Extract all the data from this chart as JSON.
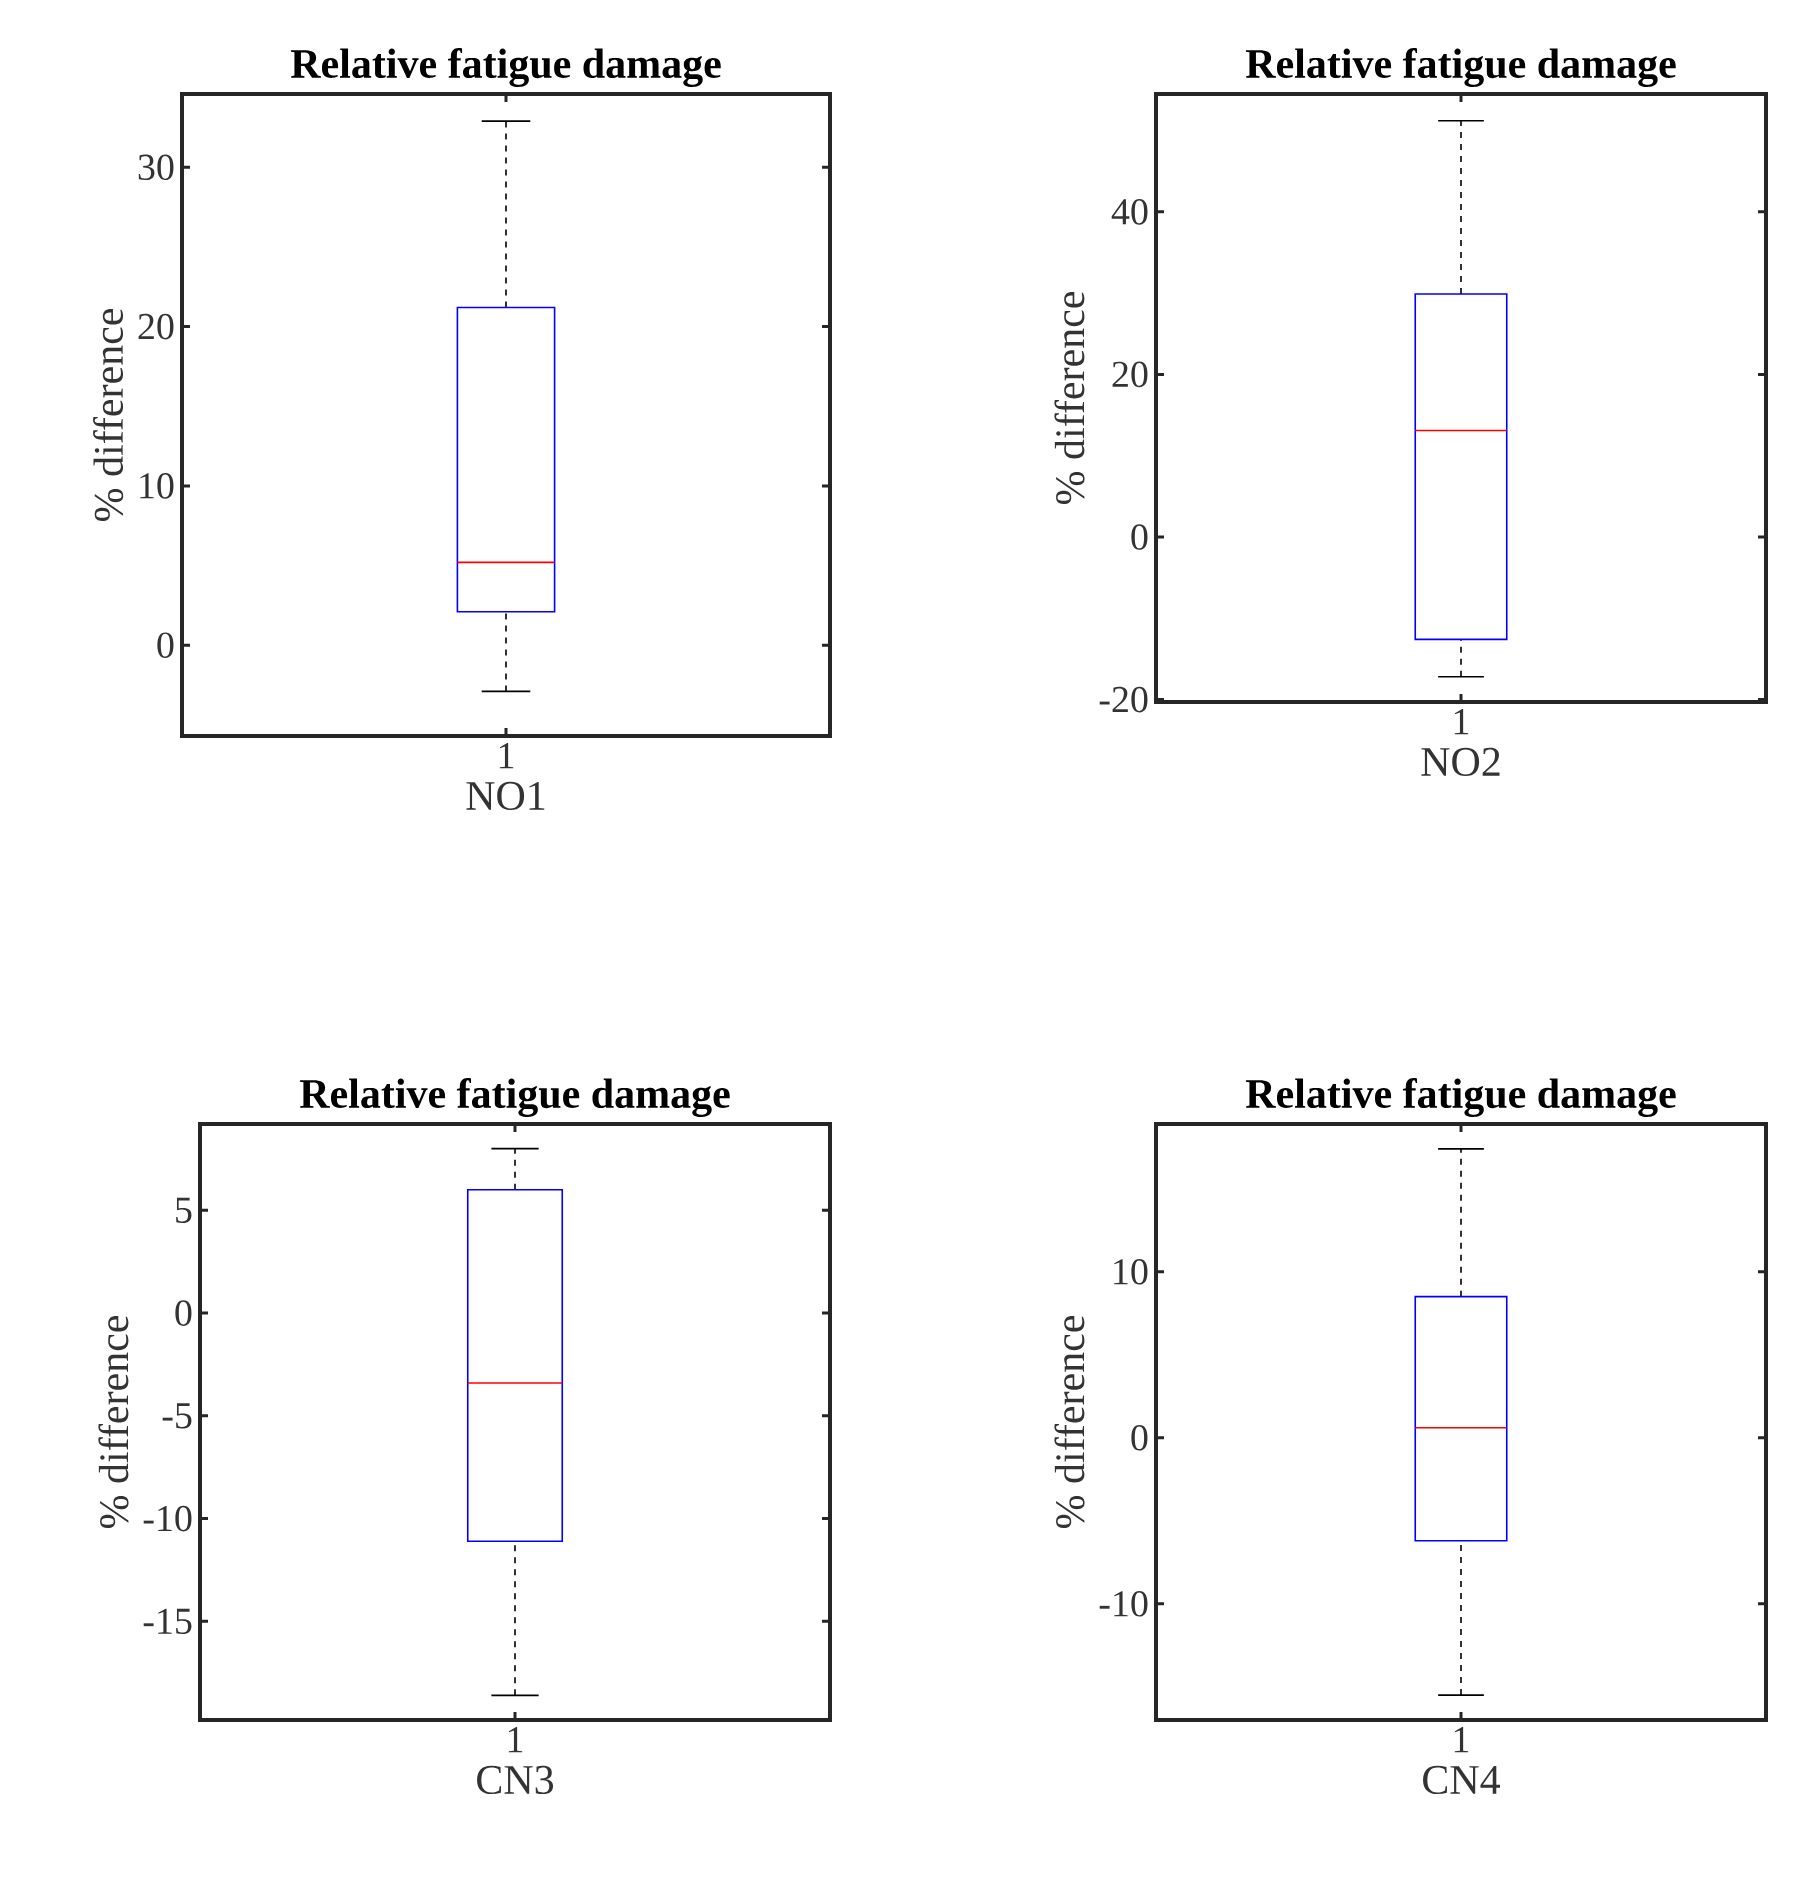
{
  "chart_data": [
    {
      "type": "box",
      "title": "Relative fatigue damage",
      "xlabel": "NO1",
      "ylabel": "% difference",
      "categories": [
        "1"
      ],
      "boxes": [
        {
          "low": -2.9,
          "q1": 2.1,
          "median": 5.2,
          "q3": 21.2,
          "high": 32.9
        }
      ],
      "ylim": [
        -5.7,
        34.6
      ],
      "yticks": [
        0,
        10,
        20,
        30
      ]
    },
    {
      "type": "box",
      "title": "Relative fatigue damage",
      "xlabel": "NO2",
      "ylabel": "% difference",
      "categories": [
        "1"
      ],
      "boxes": [
        {
          "low": -17.2,
          "q1": -12.6,
          "median": 13.1,
          "q3": 29.9,
          "high": 51.2
        }
      ],
      "ylim": [
        -20.3,
        54.5
      ],
      "yticks": [
        -20,
        0,
        20,
        40
      ]
    },
    {
      "type": "box",
      "title": "Relative fatigue damage",
      "xlabel": "CN3",
      "ylabel": "% difference",
      "categories": [
        "1"
      ],
      "boxes": [
        {
          "low": -18.6,
          "q1": -11.1,
          "median": -3.4,
          "q3": 6.0,
          "high": 8.0
        }
      ],
      "ylim": [
        -19.8,
        9.2
      ],
      "yticks": [
        -15,
        -10,
        -5,
        0,
        5
      ]
    },
    {
      "type": "box",
      "title": "Relative fatigue damage",
      "xlabel": "CN4",
      "ylabel": "% difference",
      "categories": [
        "1"
      ],
      "boxes": [
        {
          "low": -15.5,
          "q1": -6.2,
          "median": 0.6,
          "q3": 8.5,
          "high": 17.4
        }
      ],
      "ylim": [
        -17.0,
        18.9
      ],
      "yticks": [
        -10,
        0,
        10
      ]
    }
  ]
}
